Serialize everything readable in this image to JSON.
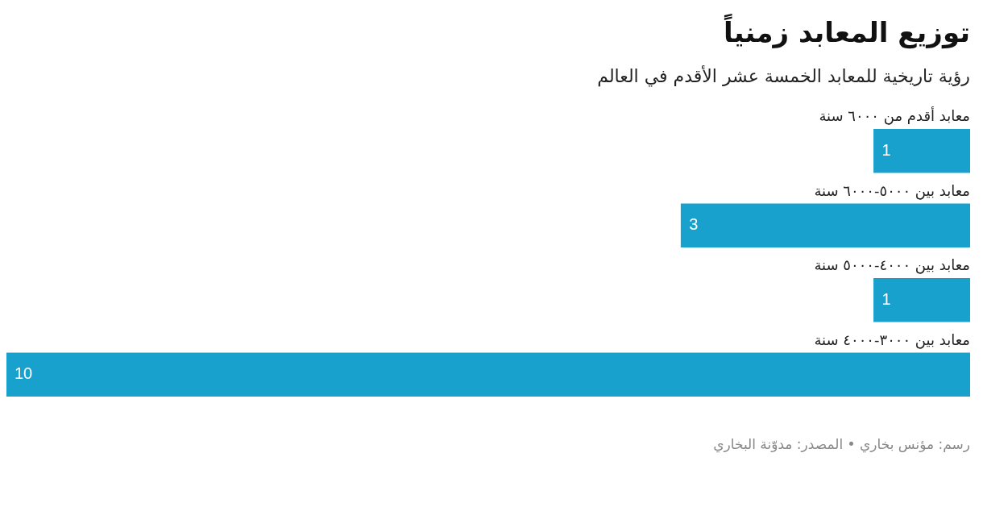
{
  "chart_data": {
    "type": "bar",
    "orientation": "horizontal",
    "title": "توزيع المعابد زمنياً",
    "subtitle": "رؤية تاريخية للمعابد الخمسة عشر الأقدم في العالم",
    "categories": [
      "معابد أقدم من ٦٠٠٠ سنة",
      "معابد بين ٥٠٠٠-٦٠٠٠ سنة",
      "معابد بين ٤٠٠٠-٥٠٠٠ سنة",
      "معابد بين ٣٠٠٠-٤٠٠٠ سنة"
    ],
    "values": [
      1,
      3,
      1,
      10
    ],
    "color": "#18a1cd",
    "data_labels": true,
    "annotations": [
      "رسم: مؤنس بخاري • المصدر: مدوّنة البخاري"
    ]
  }
}
